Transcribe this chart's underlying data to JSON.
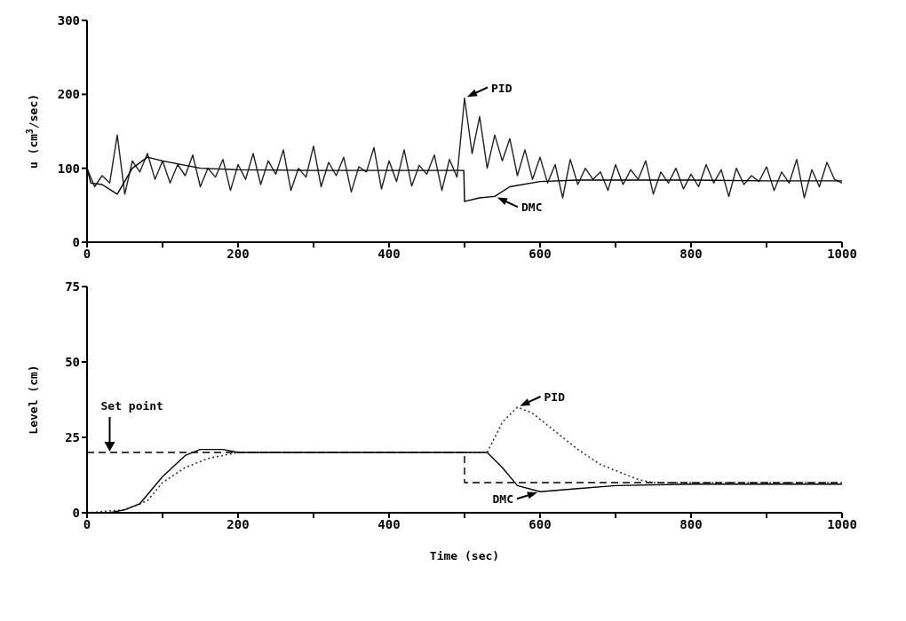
{
  "chart_data": [
    {
      "type": "line",
      "ylabel": "u (cm$^{3}$/sec)",
      "xlim": [
        0,
        1000
      ],
      "xticks": [
        0,
        {
          "value": 100,
          "label": null
        },
        200,
        {
          "value": 300,
          "label": null
        },
        400,
        {
          "value": 500,
          "label": null
        },
        600,
        {
          "value": 700,
          "label": null
        },
        800,
        {
          "value": 900,
          "label": null
        },
        1000
      ],
      "ylim": [
        0,
        300
      ],
      "yticks": [
        0,
        100,
        200,
        300
      ],
      "grid": false,
      "legend": false,
      "marker": "none",
      "annotations": [
        {
          "text": "PID",
          "x": 500,
          "y": 195
        },
        {
          "text": "DMC",
          "x": 540,
          "y": 62
        }
      ],
      "series": [
        {
          "color": "#222222",
          "line_style": "solid",
          "x": [
            0,
            10,
            20,
            30,
            40,
            50,
            60,
            70,
            80,
            90,
            100,
            110,
            120,
            130,
            140,
            150,
            160,
            170,
            180,
            190,
            200,
            210,
            220,
            230,
            240,
            250,
            260,
            270,
            280,
            290,
            300,
            310,
            320,
            330,
            340,
            350,
            360,
            370,
            380,
            390,
            400,
            410,
            420,
            430,
            440,
            450,
            460,
            470,
            480,
            490,
            500,
            510,
            520,
            530,
            540,
            550,
            560,
            570,
            580,
            590,
            600,
            610,
            620,
            630,
            640,
            650,
            660,
            670,
            680,
            690,
            700,
            710,
            720,
            730,
            740,
            750,
            760,
            770,
            780,
            790,
            800,
            810,
            820,
            830,
            840,
            850,
            860,
            870,
            880,
            890,
            900,
            910,
            920,
            930,
            940,
            950,
            960,
            970,
            980,
            990,
            1000
          ],
          "values": [
            100,
            75,
            90,
            80,
            145,
            65,
            110,
            95,
            120,
            85,
            110,
            80,
            105,
            90,
            118,
            75,
            100,
            88,
            112,
            70,
            105,
            85,
            120,
            78,
            110,
            92,
            125,
            70,
            100,
            88,
            130,
            75,
            108,
            90,
            115,
            68,
            102,
            95,
            128,
            72,
            110,
            82,
            125,
            76,
            104,
            92,
            118,
            70,
            112,
            88,
            195,
            120,
            170,
            100,
            145,
            110,
            140,
            90,
            125,
            85,
            115,
            80,
            105,
            60,
            112,
            78,
            100,
            85,
            95,
            70,
            105,
            78,
            98,
            85,
            110,
            65,
            95,
            80,
            100,
            72,
            92,
            75,
            105,
            80,
            98,
            62,
            100,
            78,
            90,
            82,
            102,
            70,
            95,
            80,
            112,
            60,
            98,
            75,
            108,
            85,
            80
          ]
        },
        {
          "color": "#000000",
          "line_style": "solid",
          "x": [
            0,
            5,
            20,
            40,
            60,
            80,
            100,
            150,
            200,
            300,
            400,
            499,
            500,
            520,
            540,
            560,
            600,
            650,
            700,
            800,
            900,
            1000
          ],
          "values": [
            100,
            80,
            78,
            65,
            100,
            115,
            110,
            100,
            98,
            97,
            97,
            97,
            55,
            60,
            62,
            75,
            82,
            84,
            84,
            84,
            83,
            83
          ]
        }
      ]
    },
    {
      "type": "line",
      "ylabel": "Level (cm)",
      "xlabel": "Time (sec)",
      "xlim": [
        0,
        1000
      ],
      "xticks": [
        0,
        {
          "value": 100,
          "label": null
        },
        200,
        {
          "value": 300,
          "label": null
        },
        400,
        {
          "value": 500,
          "label": null
        },
        600,
        {
          "value": 700,
          "label": null
        },
        800,
        {
          "value": 900,
          "label": null
        },
        1000
      ],
      "ylim": [
        0,
        75
      ],
      "yticks": [
        0,
        25,
        50,
        75
      ],
      "grid": false,
      "legend": false,
      "marker": "none",
      "annotations": [
        {
          "text": "PID",
          "x": 570,
          "y": 35
        },
        {
          "text": "DMC",
          "x": 600,
          "y": 7
        }
      ],
      "series": [
        {
          "name": "Set point",
          "type": "step",
          "color": "#000000",
          "line_style": "dashed",
          "x": [
            0,
            500,
            1000
          ],
          "values": [
            20,
            10,
            10
          ]
        },
        {
          "color": "#333333",
          "line_style": "dotted",
          "x": [
            0,
            50,
            80,
            100,
            130,
            160,
            200,
            300,
            400,
            500,
            530,
            550,
            570,
            590,
            620,
            650,
            680,
            700,
            730,
            750,
            800,
            900,
            1000
          ],
          "values": [
            0,
            1,
            4,
            10,
            15,
            18,
            20,
            20,
            20,
            20,
            20,
            30,
            35,
            33,
            27,
            21,
            16,
            14,
            11,
            10,
            10,
            10,
            10
          ]
        },
        {
          "color": "#000000",
          "line_style": "solid",
          "x": [
            0,
            30,
            50,
            70,
            100,
            130,
            150,
            180,
            200,
            300,
            400,
            500,
            530,
            550,
            570,
            600,
            650,
            700,
            800,
            900,
            1000
          ],
          "values": [
            0,
            0,
            1,
            3,
            12,
            19,
            21,
            21,
            20,
            20,
            20,
            20,
            20,
            15,
            9,
            7,
            8,
            9,
            9.5,
            9.5,
            9.5
          ]
        }
      ]
    }
  ]
}
